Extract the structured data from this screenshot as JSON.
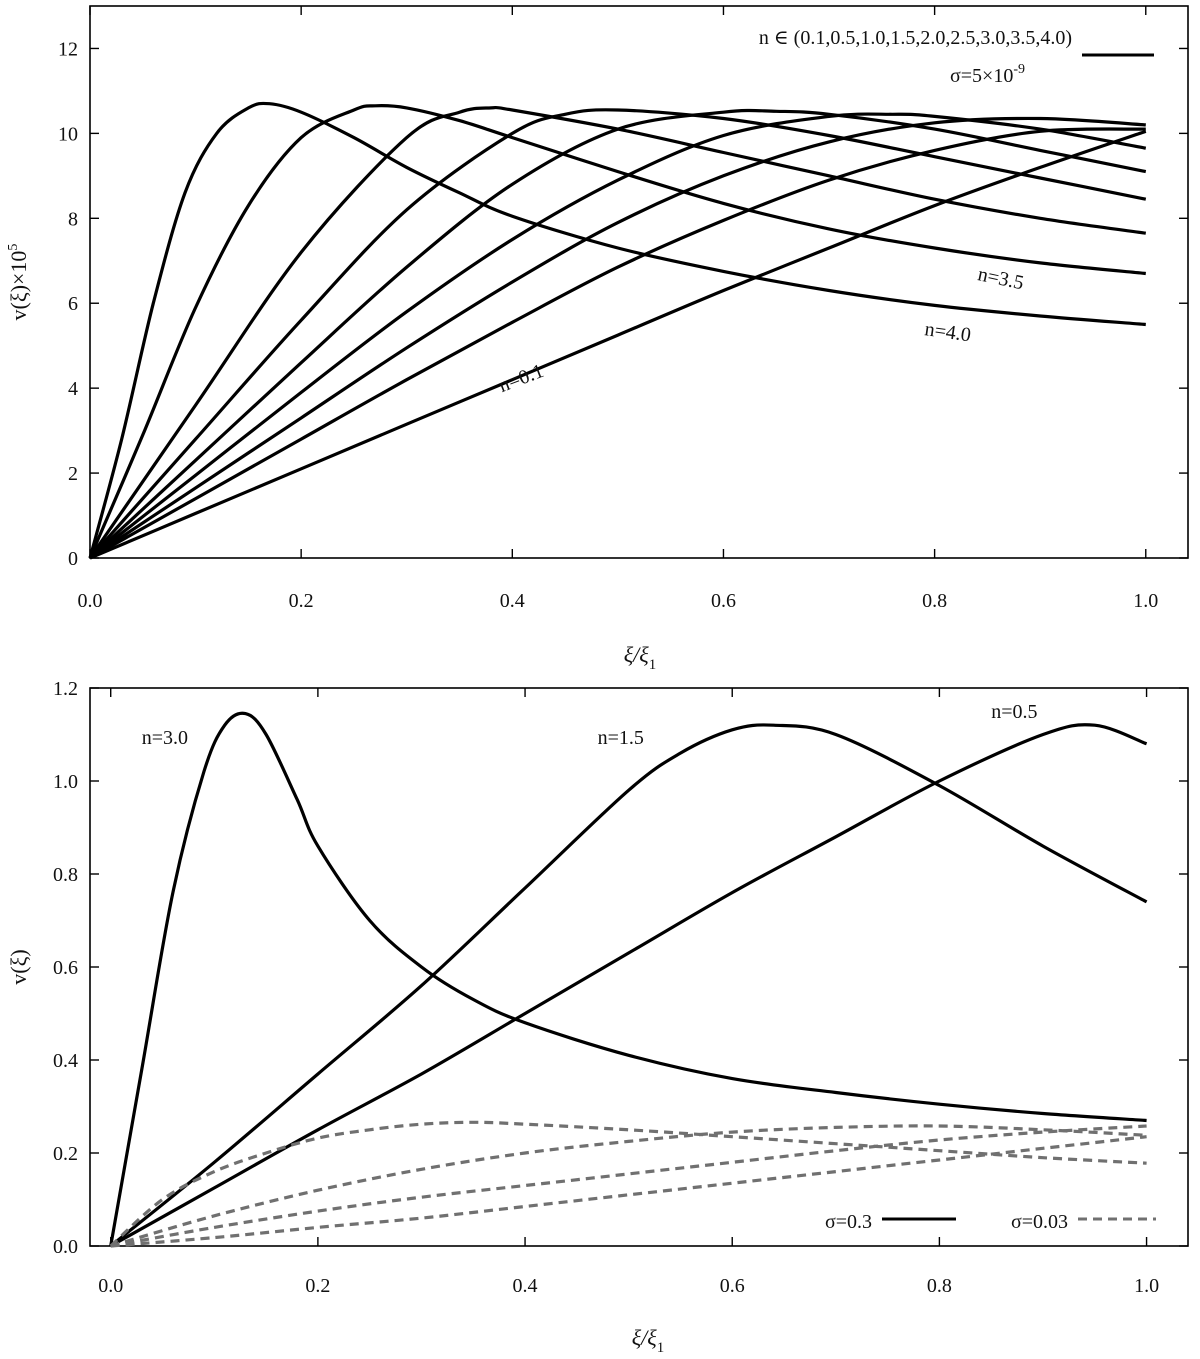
{
  "chart_data": [
    {
      "id": "top",
      "type": "line",
      "xlabel": "ξ/ξ",
      "xlabel_sub": "1",
      "ylabel": "v(ξ)×10",
      "ylabel_sup": "5",
      "xlim": [
        0,
        1.04
      ],
      "ylim": [
        0,
        13
      ],
      "xticks": [
        0.0,
        0.2,
        0.4,
        0.6,
        0.8,
        1.0
      ],
      "xtick_labels": [
        "0.0",
        "0.2",
        "0.4",
        "0.6",
        "0.8",
        "1.0"
      ],
      "yticks": [
        0,
        2,
        4,
        6,
        8,
        10,
        12
      ],
      "ytick_labels": [
        "0",
        "2",
        "4",
        "6",
        "8",
        "10",
        "12"
      ],
      "legend": {
        "text": "n ∈ (0.1,0.5,1.0,1.5,2.0,2.5,3.0,3.5,4.0)",
        "line2_prefix": "σ=5×10",
        "line2_sup": "-9",
        "style": "solid",
        "color": "#000000",
        "position": "top-right"
      },
      "series": [
        {
          "name": "n=4.0",
          "x": [
            0,
            0.03,
            0.06,
            0.09,
            0.12,
            0.15,
            0.17,
            0.2,
            0.25,
            0.3,
            0.35,
            0.4,
            0.5,
            0.6,
            0.7,
            0.8,
            0.9,
            1.0
          ],
          "y": [
            0,
            2.8,
            6.0,
            8.6,
            10.0,
            10.6,
            10.7,
            10.5,
            9.9,
            9.2,
            8.6,
            8.05,
            7.3,
            6.75,
            6.3,
            5.95,
            5.7,
            5.5
          ]
        },
        {
          "name": "n=3.5",
          "x": [
            0,
            0.05,
            0.1,
            0.15,
            0.2,
            0.25,
            0.27,
            0.3,
            0.35,
            0.4,
            0.5,
            0.6,
            0.7,
            0.8,
            0.9,
            1.0
          ],
          "y": [
            0,
            2.9,
            5.9,
            8.3,
            9.9,
            10.55,
            10.65,
            10.6,
            10.3,
            9.9,
            9.1,
            8.35,
            7.75,
            7.3,
            6.95,
            6.7
          ]
        },
        {
          "name": "n=3.0",
          "x": [
            0,
            0.1,
            0.2,
            0.3,
            0.35,
            0.38,
            0.4,
            0.5,
            0.6,
            0.7,
            0.8,
            0.9,
            1.0
          ],
          "y": [
            0,
            3.6,
            7.2,
            9.9,
            10.5,
            10.6,
            10.55,
            10.1,
            9.55,
            9.0,
            8.45,
            8.0,
            7.65
          ]
        },
        {
          "name": "n=2.5",
          "x": [
            0,
            0.1,
            0.2,
            0.3,
            0.4,
            0.45,
            0.5,
            0.6,
            0.7,
            0.8,
            0.9,
            1.0
          ],
          "y": [
            0,
            2.8,
            5.6,
            8.2,
            10.0,
            10.45,
            10.55,
            10.35,
            9.95,
            9.45,
            8.95,
            8.45
          ]
        },
        {
          "name": "n=2.0",
          "x": [
            0,
            0.1,
            0.2,
            0.3,
            0.4,
            0.5,
            0.6,
            0.65,
            0.7,
            0.8,
            0.9,
            1.0
          ],
          "y": [
            0,
            2.3,
            4.6,
            6.85,
            8.8,
            10.1,
            10.5,
            10.52,
            10.45,
            10.1,
            9.6,
            9.1
          ]
        },
        {
          "name": "n=1.5",
          "x": [
            0,
            0.1,
            0.2,
            0.3,
            0.4,
            0.5,
            0.6,
            0.7,
            0.76,
            0.8,
            0.9,
            1.0
          ],
          "y": [
            0,
            1.95,
            3.9,
            5.8,
            7.5,
            8.9,
            9.95,
            10.4,
            10.45,
            10.4,
            10.1,
            9.65
          ]
        },
        {
          "name": "n=1.0",
          "x": [
            0,
            0.1,
            0.2,
            0.3,
            0.4,
            0.5,
            0.6,
            0.7,
            0.8,
            0.9,
            1.0
          ],
          "y": [
            0,
            1.65,
            3.3,
            4.95,
            6.5,
            7.9,
            9.0,
            9.8,
            10.25,
            10.35,
            10.2
          ]
        },
        {
          "name": "n=0.5",
          "x": [
            0,
            0.1,
            0.2,
            0.3,
            0.4,
            0.5,
            0.6,
            0.7,
            0.8,
            0.9,
            1.0
          ],
          "y": [
            0,
            1.4,
            2.8,
            4.2,
            5.55,
            6.85,
            7.95,
            8.9,
            9.6,
            10.05,
            10.1
          ]
        },
        {
          "name": "n=0.1",
          "x": [
            0,
            0.1,
            0.2,
            0.3,
            0.4,
            0.5,
            0.6,
            0.7,
            0.8,
            0.9,
            1.0
          ],
          "y": [
            0,
            1.05,
            2.1,
            3.15,
            4.2,
            5.25,
            6.3,
            7.3,
            8.3,
            9.2,
            10.05
          ]
        }
      ],
      "annotations": [
        {
          "text": "n=3.5",
          "x": 0.84,
          "y": 6.55,
          "rotate": 12
        },
        {
          "text": "n=4.0",
          "x": 0.79,
          "y": 5.25,
          "rotate": 8
        },
        {
          "text": "n=0.1",
          "x": 0.39,
          "y": 3.9,
          "rotate": -21
        }
      ]
    },
    {
      "id": "bottom",
      "type": "line",
      "xlabel": "ξ/ξ",
      "xlabel_sub": "1",
      "ylabel": "v(ξ)",
      "xlim": [
        -0.02,
        1.04
      ],
      "ylim": [
        0,
        1.2
      ],
      "xticks": [
        0.0,
        0.2,
        0.4,
        0.6,
        0.8,
        1.0
      ],
      "xtick_labels": [
        "0.0",
        "0.2",
        "0.4",
        "0.6",
        "0.8",
        "1.0"
      ],
      "yticks": [
        0.0,
        0.2,
        0.4,
        0.6,
        0.8,
        1.0,
        1.2
      ],
      "ytick_labels": [
        "0.0",
        "0.2",
        "0.4",
        "0.6",
        "0.8",
        "1.0",
        "1.2"
      ],
      "legend": [
        {
          "text": "σ=0.3",
          "style": "solid",
          "color": "#000000"
        },
        {
          "text": "σ=0.03",
          "style": "dashed",
          "color": "#707070"
        }
      ],
      "legend_position": "bottom-right",
      "series": [
        {
          "name": "n=3.0 σ=0.3",
          "style": "solid",
          "x": [
            0,
            0.03,
            0.06,
            0.09,
            0.11,
            0.13,
            0.15,
            0.18,
            0.2,
            0.25,
            0.3,
            0.35,
            0.4,
            0.5,
            0.6,
            0.7,
            0.8,
            0.9,
            1.0
          ],
          "y": [
            0,
            0.38,
            0.76,
            1.02,
            1.12,
            1.145,
            1.1,
            0.96,
            0.86,
            0.7,
            0.6,
            0.53,
            0.48,
            0.41,
            0.36,
            0.33,
            0.305,
            0.285,
            0.27
          ]
        },
        {
          "name": "n=1.5 σ=0.3",
          "style": "solid",
          "x": [
            0,
            0.1,
            0.2,
            0.3,
            0.4,
            0.5,
            0.55,
            0.6,
            0.64,
            0.7,
            0.8,
            0.9,
            1.0
          ],
          "y": [
            0,
            0.18,
            0.37,
            0.56,
            0.77,
            0.98,
            1.06,
            1.11,
            1.12,
            1.1,
            0.99,
            0.86,
            0.74
          ]
        },
        {
          "name": "n=0.5 σ=0.3",
          "style": "solid",
          "x": [
            0,
            0.1,
            0.2,
            0.3,
            0.4,
            0.5,
            0.6,
            0.7,
            0.8,
            0.9,
            0.95,
            1.0
          ],
          "y": [
            0,
            0.125,
            0.25,
            0.37,
            0.5,
            0.63,
            0.76,
            0.88,
            1.0,
            1.1,
            1.12,
            1.08
          ]
        },
        {
          "name": "n=3.0 σ=0.03",
          "style": "dashed",
          "x": [
            0,
            0.05,
            0.1,
            0.15,
            0.2,
            0.25,
            0.3,
            0.35,
            0.4,
            0.5,
            0.6,
            0.7,
            0.8,
            0.9,
            1.0
          ],
          "y": [
            0,
            0.1,
            0.16,
            0.2,
            0.232,
            0.25,
            0.262,
            0.266,
            0.262,
            0.25,
            0.235,
            0.22,
            0.205,
            0.19,
            0.178
          ]
        },
        {
          "name": "n=1.5 σ=0.03",
          "style": "dashed",
          "x": [
            0,
            0.1,
            0.2,
            0.3,
            0.4,
            0.5,
            0.6,
            0.7,
            0.8,
            0.9,
            1.0
          ],
          "y": [
            0,
            0.065,
            0.12,
            0.165,
            0.2,
            0.225,
            0.245,
            0.255,
            0.258,
            0.25,
            0.238
          ]
        },
        {
          "name": "n=0.5 σ=0.03",
          "style": "dashed",
          "x": [
            0,
            0.1,
            0.2,
            0.3,
            0.4,
            0.5,
            0.6,
            0.7,
            0.8,
            0.9,
            1.0
          ],
          "y": [
            0,
            0.04,
            0.075,
            0.105,
            0.13,
            0.155,
            0.18,
            0.205,
            0.228,
            0.245,
            0.258
          ]
        },
        {
          "name": "n=0.1 σ=0.03",
          "style": "dashed",
          "x": [
            0,
            0.1,
            0.2,
            0.3,
            0.4,
            0.5,
            0.6,
            0.7,
            0.8,
            0.9,
            1.0
          ],
          "y": [
            0,
            0.018,
            0.04,
            0.06,
            0.085,
            0.11,
            0.135,
            0.16,
            0.185,
            0.21,
            0.235
          ]
        }
      ],
      "annotations": [
        {
          "text": "n=3.0",
          "x": 0.03,
          "y": 1.08,
          "rotate": 0
        },
        {
          "text": "n=1.5",
          "x": 0.47,
          "y": 1.08,
          "rotate": 0
        },
        {
          "text": "n=0.5",
          "x": 0.85,
          "y": 1.135,
          "rotate": 0
        }
      ]
    }
  ]
}
